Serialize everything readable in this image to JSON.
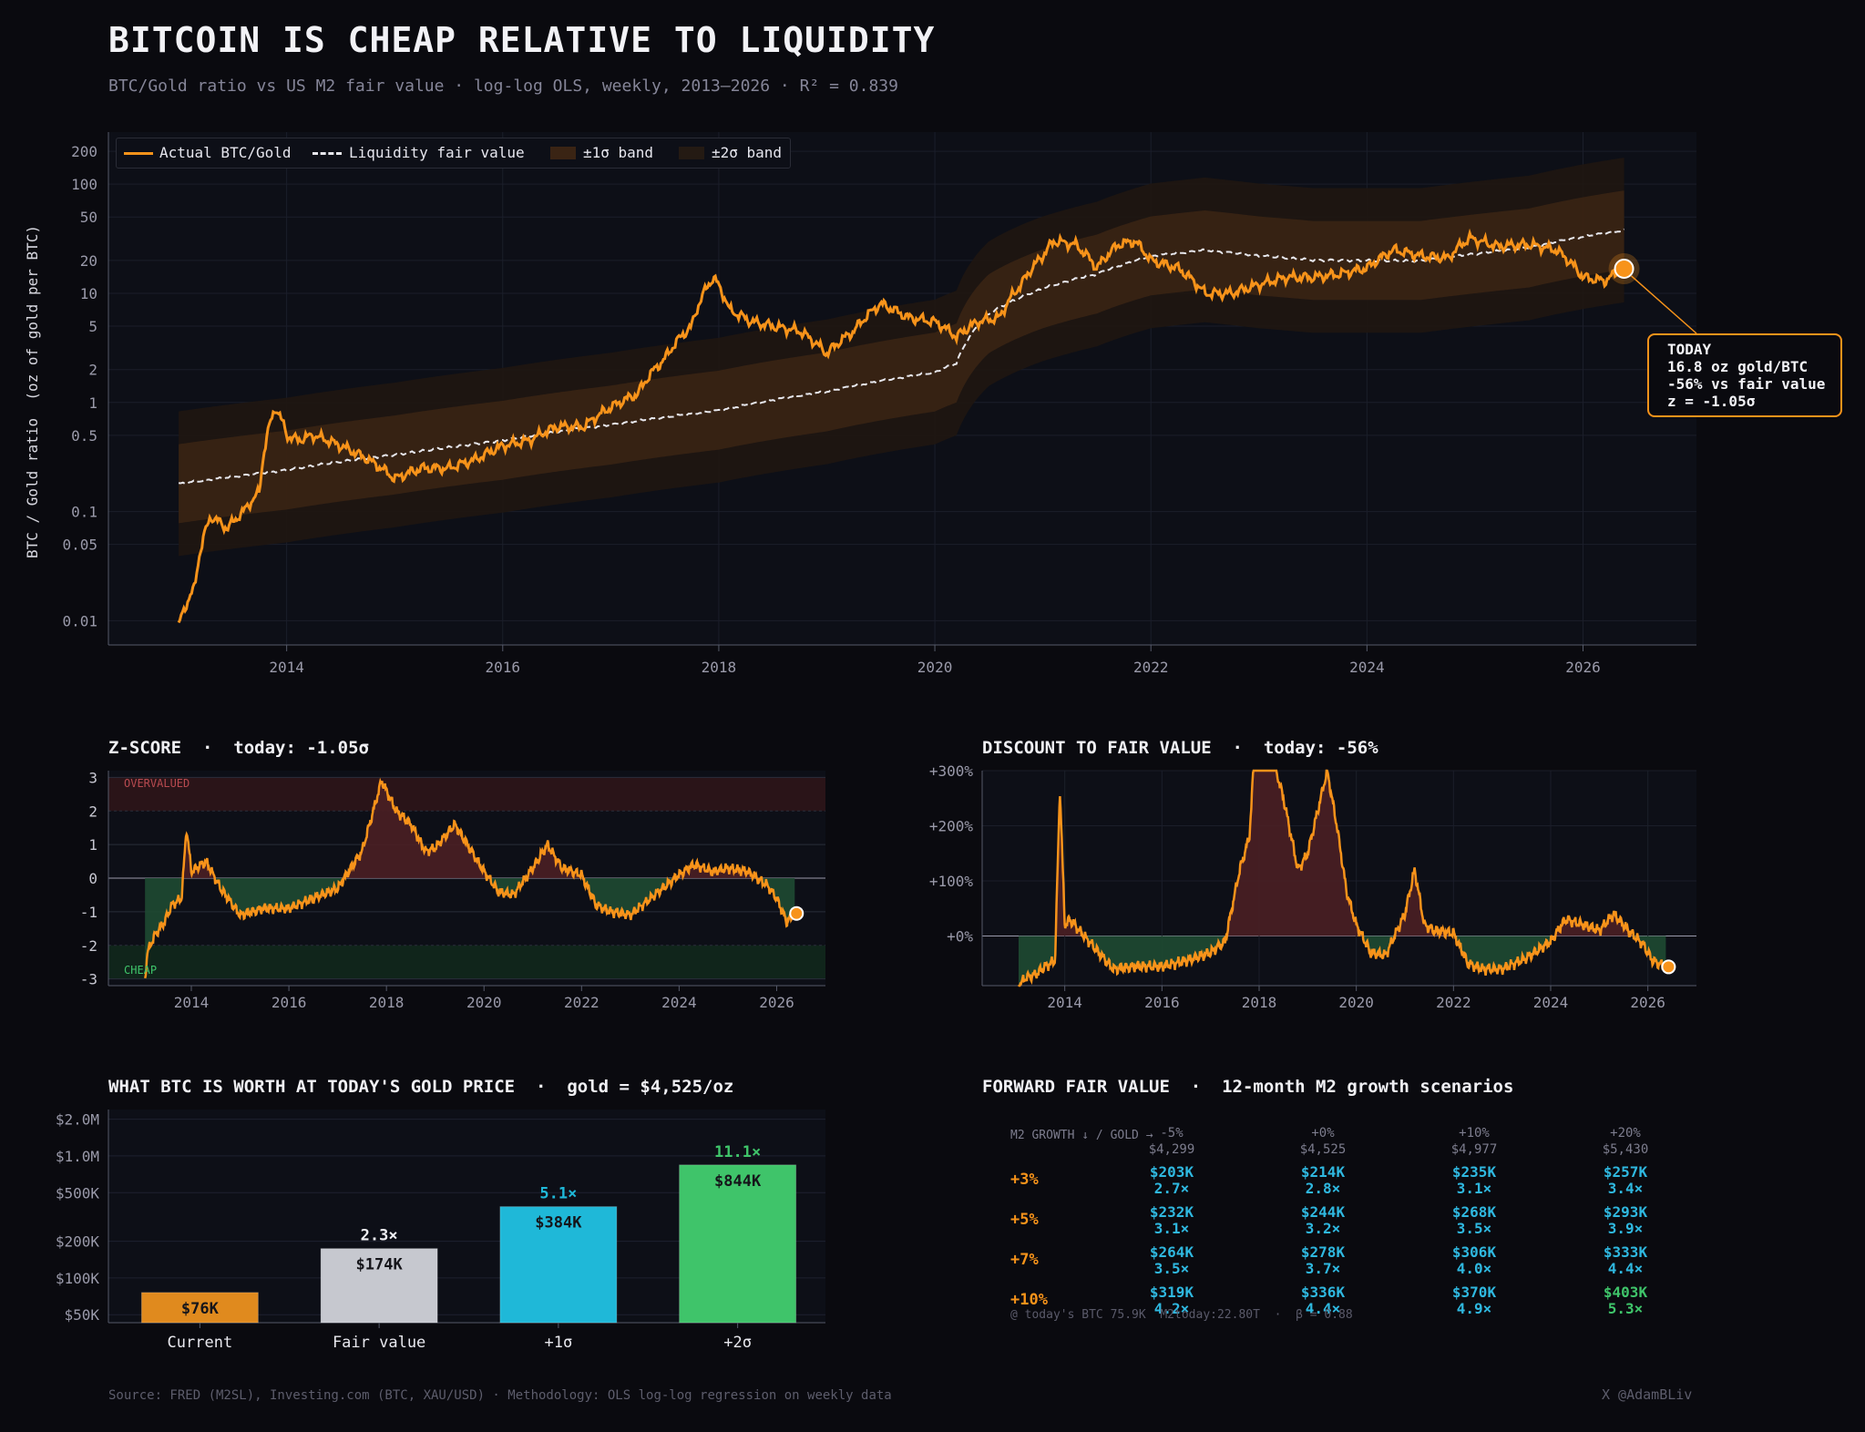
{
  "header": {
    "title": "BITCOIN IS CHEAP RELATIVE TO LIQUIDITY",
    "subtitle": "BTC/Gold ratio vs US M2 fair value  ·  log-log OLS, weekly, 2013–2026  ·  R² = 0.839"
  },
  "colors": {
    "actual": "#f7931a",
    "fair": "#e8e8ee",
    "band1": "#3a2414",
    "band2": "#1f1611",
    "cheap": "#1e4a32",
    "overvalued": "#4a1f24",
    "plot_bg": "#0d0f17",
    "bar_current": "#e08a1e",
    "bar_fair": "#c6c8cf",
    "bar_1sigma": "#1fb8d8",
    "bar_2sigma": "#3fc46a"
  },
  "main_chart": {
    "ylabel": "BTC / Gold ratio  (oz of gold per BTC)",
    "legend": [
      "Actual BTC/Gold",
      "Liquidity fair value",
      "±1σ band",
      "±2σ band"
    ],
    "callout": [
      "TODAY",
      "16.8 oz gold/BTC",
      "-56% vs fair value",
      "z = -1.05σ"
    ]
  },
  "zscore_panel": {
    "title": "Z-SCORE  ·  today: -1.05σ",
    "overvalued_label": "OVERVALUED",
    "cheap_label": "CHEAP"
  },
  "discount_panel": {
    "title": "DISCOUNT TO FAIR VALUE  ·  today: -56%"
  },
  "worth_panel": {
    "title": "WHAT BTC IS WORTH AT TODAY'S GOLD PRICE  ·  gold = $4,525/oz"
  },
  "scenario_panel": {
    "title": "FORWARD FAIR VALUE  ·  12-month M2 growth scenarios",
    "corner_label": "M2 GROWTH ↓ / GOLD →",
    "gold_headers": [
      {
        "pct": "-5%",
        "price": "$4,299"
      },
      {
        "pct": "+0%",
        "price": "$4,525"
      },
      {
        "pct": "+10%",
        "price": "$4,977"
      },
      {
        "pct": "+20%",
        "price": "$5,430"
      }
    ],
    "rows": [
      {
        "m2": "+3%",
        "cells": [
          [
            "$203K",
            "2.7×"
          ],
          [
            "$214K",
            "2.8×"
          ],
          [
            "$235K",
            "3.1×"
          ],
          [
            "$257K",
            "3.4×"
          ]
        ]
      },
      {
        "m2": "+5%",
        "cells": [
          [
            "$232K",
            "3.1×"
          ],
          [
            "$244K",
            "3.2×"
          ],
          [
            "$268K",
            "3.5×"
          ],
          [
            "$293K",
            "3.9×"
          ]
        ]
      },
      {
        "m2": "+7%",
        "cells": [
          [
            "$264K",
            "3.5×"
          ],
          [
            "$278K",
            "3.7×"
          ],
          [
            "$306K",
            "4.0×"
          ],
          [
            "$333K",
            "4.4×"
          ]
        ]
      },
      {
        "m2": "+10%",
        "cells": [
          [
            "$319K",
            "4.2×"
          ],
          [
            "$336K",
            "4.4×"
          ],
          [
            "$370K",
            "4.9×"
          ],
          [
            "$403K",
            "5.3×"
          ]
        ]
      }
    ],
    "footnote": "@ today's BTC 75.9K  M2today:22.80T  ·  β = 0.88"
  },
  "footer": {
    "source": "Source: FRED (M2SL), Investing.com (BTC, XAU/USD)  ·  Methodology: OLS log-log regression on weekly data",
    "handle": "X @AdamBLiv"
  },
  "chart_data": [
    {
      "type": "line",
      "title": "BITCOIN IS CHEAP RELATIVE TO LIQUIDITY",
      "ylabel": "BTC / Gold ratio  (oz of gold per BTC)",
      "yscale": "log",
      "ylim": [
        0.006,
        300
      ],
      "xlim": [
        2012.35,
        2027.05
      ],
      "yticks": [
        0.01,
        0.05,
        0.1,
        0.5,
        1,
        2,
        5,
        10,
        20,
        50,
        100,
        200
      ],
      "ytick_labels": [
        "0.01",
        "0.05",
        "0.1",
        "0.5",
        "1",
        "2",
        "5",
        "10",
        "20",
        "50",
        "100",
        "200"
      ],
      "xticks": [
        2014,
        2016,
        2018,
        2020,
        2022,
        2024,
        2026
      ],
      "grid": true,
      "legend_position": "top-left",
      "series": [
        {
          "name": "Actual BTC/Gold",
          "x": [
            2013.0,
            2013.15,
            2013.3,
            2013.45,
            2013.6,
            2013.75,
            2013.9,
            2014.0,
            2014.1,
            2014.25,
            2014.5,
            2014.75,
            2015.0,
            2015.25,
            2015.5,
            2015.75,
            2016.0,
            2016.25,
            2016.5,
            2016.75,
            2017.0,
            2017.25,
            2017.5,
            2017.75,
            2017.95,
            2018.1,
            2018.3,
            2018.5,
            2018.75,
            2019.0,
            2019.25,
            2019.5,
            2019.75,
            2020.0,
            2020.2,
            2020.4,
            2020.6,
            2020.8,
            2021.0,
            2021.1,
            2021.3,
            2021.5,
            2021.7,
            2021.85,
            2022.0,
            2022.25,
            2022.5,
            2022.75,
            2023.0,
            2023.25,
            2023.5,
            2023.75,
            2024.0,
            2024.25,
            2024.5,
            2024.75,
            2024.95,
            2025.2,
            2025.5,
            2025.75,
            2026.0,
            2026.2,
            2026.38
          ],
          "y": [
            0.009,
            0.02,
            0.09,
            0.07,
            0.1,
            0.15,
            0.9,
            0.5,
            0.45,
            0.5,
            0.4,
            0.3,
            0.2,
            0.25,
            0.25,
            0.3,
            0.4,
            0.45,
            0.6,
            0.6,
            0.9,
            1.2,
            2.5,
            5.0,
            14.0,
            7.0,
            5.5,
            5.0,
            4.5,
            2.8,
            4.5,
            8.0,
            6.0,
            5.5,
            4.0,
            5.5,
            6.0,
            12.0,
            22.0,
            30.0,
            28.0,
            17.0,
            28.0,
            30.0,
            20.0,
            17.0,
            10.0,
            10.0,
            12.0,
            14.0,
            14.0,
            15.0,
            17.0,
            25.0,
            22.0,
            21.0,
            32.0,
            27.0,
            28.0,
            25.0,
            14.0,
            13.0,
            16.8
          ]
        },
        {
          "name": "Liquidity fair value",
          "x": [
            2013.0,
            2014.0,
            2015.0,
            2016.0,
            2017.0,
            2018.0,
            2019.0,
            2020.0,
            2020.2,
            2020.5,
            2021.0,
            2021.5,
            2022.0,
            2022.5,
            2023.0,
            2023.5,
            2024.0,
            2024.5,
            2025.0,
            2025.5,
            2026.0,
            2026.38
          ],
          "y": [
            0.18,
            0.24,
            0.33,
            0.45,
            0.62,
            0.85,
            1.25,
            1.9,
            2.3,
            6.5,
            11.0,
            15.0,
            22.0,
            25.0,
            22.0,
            20.0,
            20.0,
            20.0,
            23.0,
            26.0,
            33.0,
            38.0
          ]
        }
      ]
    },
    {
      "type": "area",
      "title": "Z-SCORE  ·  today: -1.05σ",
      "ylim": [
        -3,
        3
      ],
      "yticks": [
        -3,
        -2,
        -1,
        0,
        1,
        2,
        3
      ],
      "xticks": [
        2014,
        2016,
        2018,
        2020,
        2022,
        2024,
        2026
      ],
      "xlim": [
        2012.3,
        2027.0
      ],
      "annotations": [
        "OVERVALUED",
        "CHEAP"
      ],
      "series": [
        {
          "name": "z-score",
          "x": [
            2013.05,
            2013.1,
            2013.25,
            2013.45,
            2013.6,
            2013.8,
            2013.9,
            2014.0,
            2014.3,
            2014.6,
            2015.0,
            2015.5,
            2016.0,
            2016.5,
            2017.0,
            2017.5,
            2017.9,
            2018.2,
            2018.5,
            2018.8,
            2019.0,
            2019.4,
            2019.7,
            2020.0,
            2020.3,
            2020.6,
            2021.0,
            2021.3,
            2021.6,
            2022.0,
            2022.3,
            2022.6,
            2023.0,
            2023.5,
            2024.0,
            2024.3,
            2024.7,
            2025.0,
            2025.4,
            2025.8,
            2026.0,
            2026.2,
            2026.38
          ],
          "y": [
            -3.0,
            -2.2,
            -1.7,
            -1.3,
            -0.8,
            -0.6,
            1.5,
            0.2,
            0.5,
            -0.3,
            -1.1,
            -0.9,
            -0.9,
            -0.6,
            -0.3,
            0.8,
            2.9,
            2.0,
            1.6,
            0.8,
            0.9,
            1.6,
            0.9,
            0.2,
            -0.4,
            -0.5,
            0.3,
            1.0,
            0.3,
            0.1,
            -0.8,
            -1.0,
            -1.1,
            -0.5,
            0.1,
            0.4,
            0.2,
            0.3,
            0.2,
            -0.2,
            -0.6,
            -1.3,
            -1.05
          ]
        }
      ]
    },
    {
      "type": "area",
      "title": "DISCOUNT TO FAIR VALUE  ·  today: -56%",
      "ylim": [
        -90,
        300
      ],
      "yticks": [
        0,
        100,
        200,
        300
      ],
      "ytick_labels": [
        "+0%",
        "+100%",
        "+200%",
        "+300%"
      ],
      "xticks": [
        2014,
        2016,
        2018,
        2020,
        2022,
        2024,
        2026
      ],
      "xlim": [
        2012.3,
        2027.0
      ],
      "series": [
        {
          "name": "discount",
          "x": [
            2013.05,
            2013.2,
            2013.4,
            2013.6,
            2013.8,
            2013.9,
            2014.0,
            2014.1,
            2014.4,
            2014.7,
            2015.0,
            2015.5,
            2016.0,
            2016.5,
            2017.0,
            2017.3,
            2017.6,
            2017.8,
            2017.95,
            2018.2,
            2018.5,
            2018.8,
            2019.0,
            2019.4,
            2019.6,
            2019.8,
            2020.0,
            2020.3,
            2020.6,
            2021.0,
            2021.2,
            2021.4,
            2021.6,
            2022.0,
            2022.3,
            2022.6,
            2023.0,
            2023.5,
            2024.0,
            2024.3,
            2024.7,
            2025.0,
            2025.3,
            2025.6,
            2025.9,
            2026.1,
            2026.38
          ],
          "y": [
            -90,
            -75,
            -70,
            -55,
            -45,
            270,
            20,
            30,
            0,
            -30,
            -60,
            -55,
            -55,
            -45,
            -30,
            -10,
            120,
            180,
            400,
            350,
            250,
            120,
            150,
            300,
            200,
            80,
            20,
            -30,
            -35,
            40,
            120,
            20,
            10,
            5,
            -50,
            -60,
            -60,
            -40,
            -10,
            30,
            20,
            10,
            40,
            10,
            -15,
            -45,
            -56
          ]
        }
      ]
    },
    {
      "type": "bar",
      "title": "WHAT BTC IS WORTH AT TODAY'S GOLD PRICE  ·  gold = $4,525/oz",
      "yscale": "log",
      "categories": [
        "Current",
        "Fair value",
        "+1σ",
        "+2σ"
      ],
      "values": [
        76000,
        174000,
        384000,
        844000
      ],
      "value_labels": [
        "$76K",
        "$174K",
        "$384K",
        "$844K"
      ],
      "multiples": [
        "",
        "2.3×",
        "5.1×",
        "11.1×"
      ],
      "yticks": [
        50000,
        100000,
        200000,
        500000,
        1000000,
        2000000
      ],
      "ytick_labels": [
        "$50K",
        "$100K",
        "$200K",
        "$500K",
        "$1.0M",
        "$2.0M"
      ]
    }
  ]
}
